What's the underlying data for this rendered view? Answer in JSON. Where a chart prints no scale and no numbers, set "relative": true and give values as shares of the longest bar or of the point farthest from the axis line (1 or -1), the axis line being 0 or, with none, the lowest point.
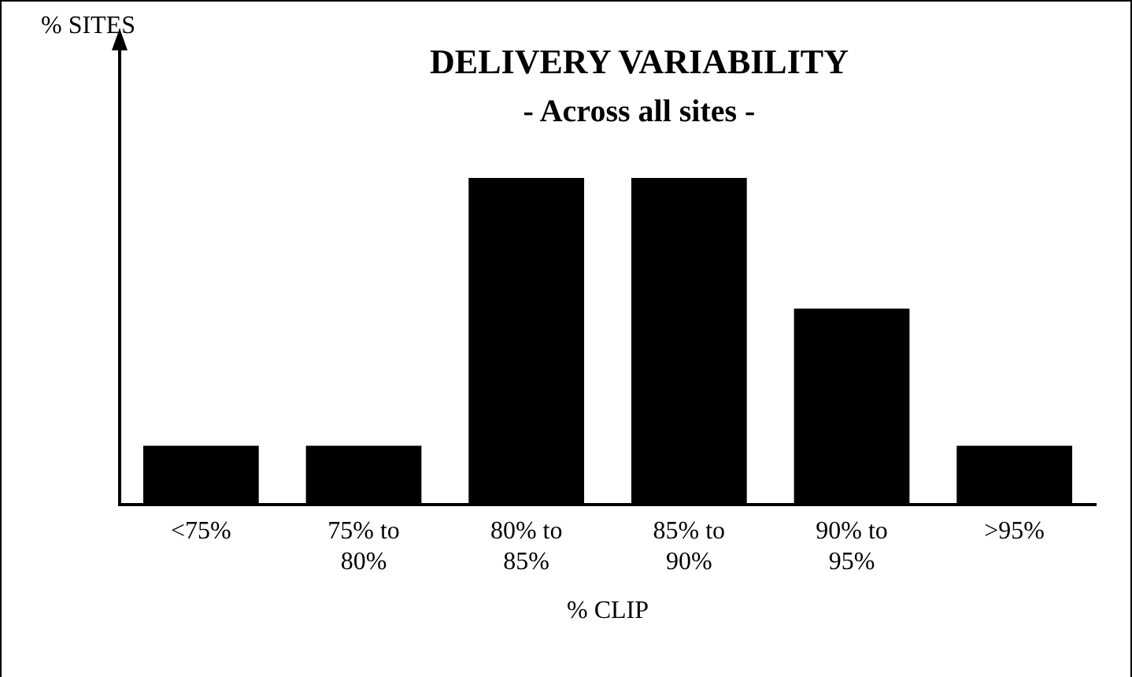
{
  "chart_data": {
    "type": "bar",
    "title": "DELIVERY VARIABILITY",
    "subtitle": "- Across all sites -",
    "xlabel": "% CLIP",
    "annotations": [
      "% SITES"
    ],
    "categories": [
      "<75%",
      "75% to 80%",
      "80% to 85%",
      "85% to 90%",
      "90% to 95%",
      ">95%"
    ],
    "values": [
      0.18,
      0.18,
      1,
      1,
      0.6,
      0.18
    ],
    "color": "#000000",
    "relative": true,
    "grid": false,
    "legend": false
  }
}
